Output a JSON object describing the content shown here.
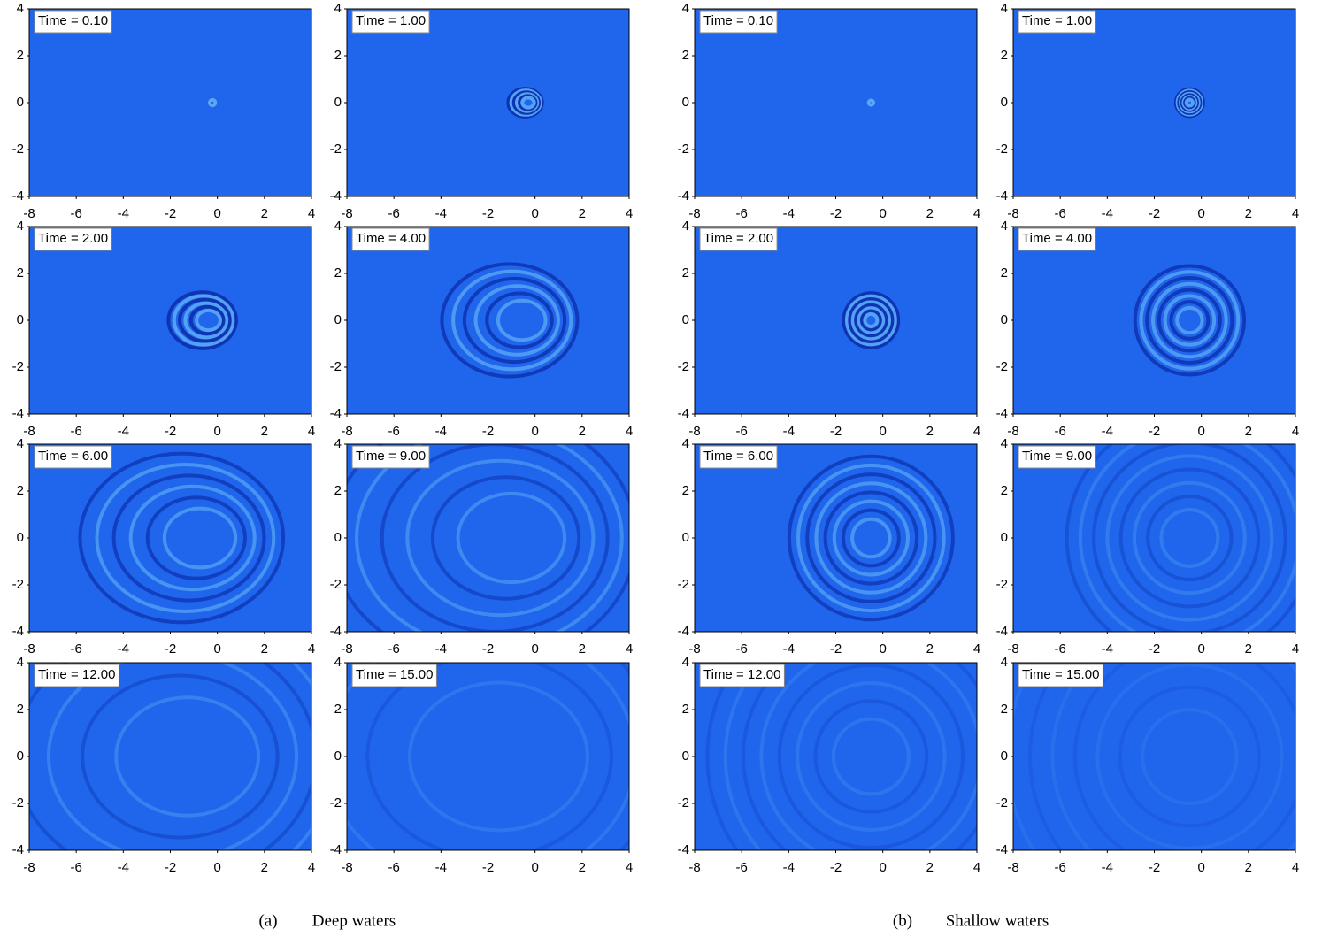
{
  "chart_data": [
    {
      "type": "heatmap",
      "title": "Time = 0.10",
      "xlim": [
        -8,
        4
      ],
      "ylim": [
        -4,
        4
      ],
      "xticks": [
        -8,
        -6,
        -4,
        -2,
        0,
        2,
        4
      ],
      "yticks": [
        -4,
        -2,
        0,
        2,
        4
      ],
      "color": "#1f66ec"
    },
    {
      "type": "heatmap",
      "title": "Time = 1.00",
      "xlim": [
        -8,
        4
      ],
      "ylim": [
        -4,
        4
      ],
      "xticks": [
        -8,
        -6,
        -4,
        -2,
        0,
        2,
        4
      ],
      "yticks": [
        -4,
        -2,
        0,
        2,
        4
      ],
      "color": "#1f66ec"
    },
    {
      "type": "heatmap",
      "title": "Time = 2.00",
      "xlim": [
        -8,
        4
      ],
      "ylim": [
        -4,
        4
      ],
      "xticks": [
        -8,
        -6,
        -4,
        -2,
        0,
        2,
        4
      ],
      "yticks": [
        -4,
        -2,
        0,
        2,
        4
      ],
      "color": "#1f66ec"
    },
    {
      "type": "heatmap",
      "title": "Time = 4.00",
      "xlim": [
        -8,
        4
      ],
      "ylim": [
        -4,
        4
      ],
      "xticks": [
        -8,
        -6,
        -4,
        -2,
        0,
        2,
        4
      ],
      "yticks": [
        -4,
        -2,
        0,
        2,
        4
      ],
      "color": "#1f66ec"
    },
    {
      "type": "heatmap",
      "title": "Time = 6.00",
      "xlim": [
        -8,
        4
      ],
      "ylim": [
        -4,
        4
      ],
      "xticks": [
        -8,
        -6,
        -4,
        -2,
        0,
        2,
        4
      ],
      "yticks": [
        -4,
        -2,
        0,
        2,
        4
      ],
      "color": "#1f66ec"
    },
    {
      "type": "heatmap",
      "title": "Time = 9.00",
      "xlim": [
        -8,
        4
      ],
      "ylim": [
        -4,
        4
      ],
      "xticks": [
        -8,
        -6,
        -4,
        -2,
        0,
        2,
        4
      ],
      "yticks": [
        -4,
        -2,
        0,
        2,
        4
      ],
      "color": "#1f66ec"
    },
    {
      "type": "heatmap",
      "title": "Time = 12.00",
      "xlim": [
        -8,
        4
      ],
      "ylim": [
        -4,
        4
      ],
      "xticks": [
        -8,
        -6,
        -4,
        -2,
        0,
        2,
        4
      ],
      "yticks": [
        -4,
        -2,
        0,
        2,
        4
      ],
      "color": "#1f66ec"
    },
    {
      "type": "heatmap",
      "title": "Time = 15.00",
      "xlim": [
        -8,
        4
      ],
      "ylim": [
        -4,
        4
      ],
      "xticks": [
        -8,
        -6,
        -4,
        -2,
        0,
        2,
        4
      ],
      "yticks": [
        -4,
        -2,
        0,
        2,
        4
      ],
      "color": "#1f66ec"
    },
    {
      "type": "heatmap",
      "title": "Time = 0.10",
      "xlim": [
        -8,
        4
      ],
      "ylim": [
        -4,
        4
      ],
      "xticks": [
        -8,
        -6,
        -4,
        -2,
        0,
        2,
        4
      ],
      "yticks": [
        -4,
        -2,
        0,
        2,
        4
      ],
      "color": "#1f66ec"
    },
    {
      "type": "heatmap",
      "title": "Time = 1.00",
      "xlim": [
        -8,
        4
      ],
      "ylim": [
        -4,
        4
      ],
      "xticks": [
        -8,
        -6,
        -4,
        -2,
        0,
        2,
        4
      ],
      "yticks": [
        -4,
        -2,
        0,
        2,
        4
      ],
      "color": "#1f66ec"
    },
    {
      "type": "heatmap",
      "title": "Time = 2.00",
      "xlim": [
        -8,
        4
      ],
      "ylim": [
        -4,
        4
      ],
      "xticks": [
        -8,
        -6,
        -4,
        -2,
        0,
        2,
        4
      ],
      "yticks": [
        -4,
        -2,
        0,
        2,
        4
      ],
      "color": "#1f66ec"
    },
    {
      "type": "heatmap",
      "title": "Time = 4.00",
      "xlim": [
        -8,
        4
      ],
      "ylim": [
        -4,
        4
      ],
      "xticks": [
        -8,
        -6,
        -4,
        -2,
        0,
        2,
        4
      ],
      "yticks": [
        -4,
        -2,
        0,
        2,
        4
      ],
      "color": "#1f66ec"
    },
    {
      "type": "heatmap",
      "title": "Time = 6.00",
      "xlim": [
        -8,
        4
      ],
      "ylim": [
        -4,
        4
      ],
      "xticks": [
        -8,
        -6,
        -4,
        -2,
        0,
        2,
        4
      ],
      "yticks": [
        -4,
        -2,
        0,
        2,
        4
      ],
      "color": "#1f66ec"
    },
    {
      "type": "heatmap",
      "title": "Time = 9.00",
      "xlim": [
        -8,
        4
      ],
      "ylim": [
        -4,
        4
      ],
      "xticks": [
        -8,
        -6,
        -4,
        -2,
        0,
        2,
        4
      ],
      "yticks": [
        -4,
        -2,
        0,
        2,
        4
      ],
      "color": "#1f66ec"
    },
    {
      "type": "heatmap",
      "title": "Time = 12.00",
      "xlim": [
        -8,
        4
      ],
      "ylim": [
        -4,
        4
      ],
      "xticks": [
        -8,
        -6,
        -4,
        -2,
        0,
        2,
        4
      ],
      "yticks": [
        -4,
        -2,
        0,
        2,
        4
      ],
      "color": "#1f66ec"
    },
    {
      "type": "heatmap",
      "title": "Time = 15.00",
      "xlim": [
        -8,
        4
      ],
      "ylim": [
        -4,
        4
      ],
      "xticks": [
        -8,
        -6,
        -4,
        -2,
        0,
        2,
        4
      ],
      "yticks": [
        -4,
        -2,
        0,
        2,
        4
      ],
      "color": "#1f66ec"
    }
  ],
  "captions": [
    {
      "label": "(a)",
      "text": "Deep waters"
    },
    {
      "label": "(b)",
      "text": "Shallow waters"
    }
  ]
}
